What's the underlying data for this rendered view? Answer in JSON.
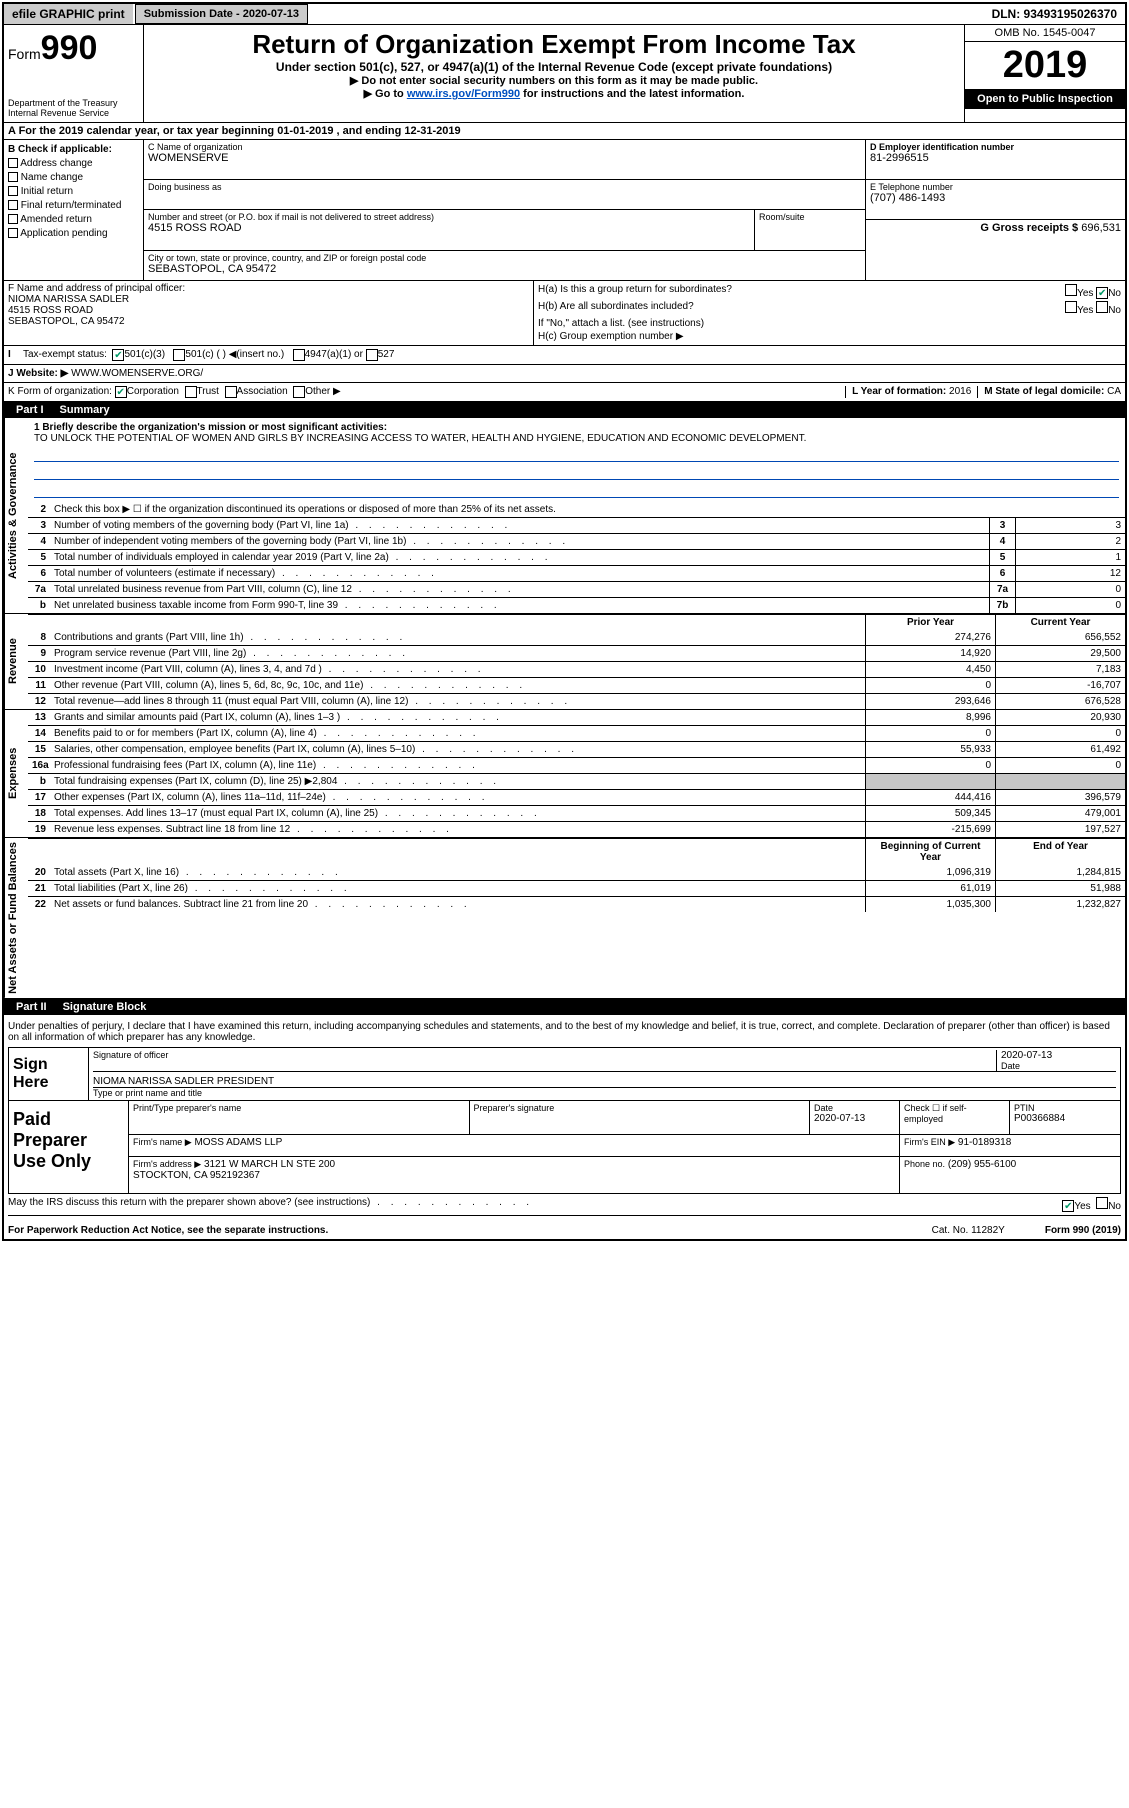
{
  "topbar": {
    "efile": "efile GRAPHIC print",
    "subdate_label": "Submission Date - 2020-07-13",
    "dln": "DLN: 93493195026370"
  },
  "header": {
    "form_label": "Form",
    "form_number": "990",
    "dept": "Department of the Treasury",
    "irs": "Internal Revenue Service",
    "title": "Return of Organization Exempt From Income Tax",
    "subtitle": "Under section 501(c), 527, or 4947(a)(1) of the Internal Revenue Code (except private foundations)",
    "no_ssn": "Do not enter social security numbers on this form as it may be made public.",
    "goto_pre": "Go to ",
    "goto_link": "www.irs.gov/Form990",
    "goto_post": " for instructions and the latest information.",
    "omb": "OMB No. 1545-0047",
    "year": "2019",
    "open": "Open to Public Inspection"
  },
  "rowA": {
    "text": "A For the 2019 calendar year, or tax year beginning 01-01-2019   , and ending 12-31-2019"
  },
  "b_checks": {
    "heading": "B Check if applicable:",
    "opts": [
      "Address change",
      "Name change",
      "Initial return",
      "Final return/terminated",
      "Amended return",
      "Application pending"
    ]
  },
  "c": {
    "label": "C Name of organization",
    "name": "WOMENSERVE",
    "dba_label": "Doing business as",
    "street_label": "Number and street (or P.O. box if mail is not delivered to street address)",
    "street": "4515 ROSS ROAD",
    "room_label": "Room/suite",
    "city_label": "City or town, state or province, country, and ZIP or foreign postal code",
    "city": "SEBASTOPOL, CA  95472"
  },
  "d": {
    "label": "D Employer identification number",
    "val": "81-2996515"
  },
  "e": {
    "label": "E Telephone number",
    "val": "(707) 486-1493"
  },
  "g": {
    "label": "G Gross receipts $",
    "val": "696,531"
  },
  "f": {
    "label": "F  Name and address of principal officer:",
    "name": "NIOMA NARISSA SADLER",
    "addr1": "4515 ROSS ROAD",
    "addr2": "SEBASTOPOL, CA  95472"
  },
  "h": {
    "a": "H(a)  Is this a group return for subordinates?",
    "a_yes": "Yes",
    "a_no": "No",
    "b": "H(b)  Are all subordinates included?",
    "b_note": "If \"No,\" attach a list. (see instructions)",
    "c": "H(c)  Group exemption number ▶"
  },
  "i": {
    "label": "Tax-exempt status:",
    "o1": "501(c)(3)",
    "o2": "501(c) (  ) ◀(insert no.)",
    "o3": "4947(a)(1) or",
    "o4": "527"
  },
  "j": {
    "label": "J   Website: ▶",
    "val": "WWW.WOMENSERVE.ORG/"
  },
  "k": {
    "label": "K Form of organization:",
    "corp": "Corporation",
    "trust": "Trust",
    "assoc": "Association",
    "other": "Other ▶",
    "l_label": "L Year of formation:",
    "l_val": "2016",
    "m_label": "M State of legal domicile:",
    "m_val": "CA"
  },
  "part1": {
    "num": "Part I",
    "title": "Summary"
  },
  "mission": {
    "q": "1  Briefly describe the organization's mission or most significant activities:",
    "text": "TO UNLOCK THE POTENTIAL OF WOMEN AND GIRLS BY INCREASING ACCESS TO WATER, HEALTH AND HYGIENE, EDUCATION AND ECONOMIC DEVELOPMENT."
  },
  "ag_rows": [
    {
      "n": "2",
      "t": "Check this box ▶ ☐  if the organization discontinued its operations or disposed of more than 25% of its net assets."
    },
    {
      "n": "3",
      "t": "Number of voting members of the governing body (Part VI, line 1a)",
      "box": "3",
      "v": "3"
    },
    {
      "n": "4",
      "t": "Number of independent voting members of the governing body (Part VI, line 1b)",
      "box": "4",
      "v": "2"
    },
    {
      "n": "5",
      "t": "Total number of individuals employed in calendar year 2019 (Part V, line 2a)",
      "box": "5",
      "v": "1"
    },
    {
      "n": "6",
      "t": "Total number of volunteers (estimate if necessary)",
      "box": "6",
      "v": "12"
    },
    {
      "n": "7a",
      "t": "Total unrelated business revenue from Part VIII, column (C), line 12",
      "box": "7a",
      "v": "0"
    },
    {
      "n": "b",
      "t": "Net unrelated business taxable income from Form 990-T, line 39",
      "box": "7b",
      "v": "0"
    }
  ],
  "colhdr": {
    "prior": "Prior Year",
    "cur": "Current Year"
  },
  "rev_rows": [
    {
      "n": "8",
      "t": "Contributions and grants (Part VIII, line 1h)",
      "p": "274,276",
      "c": "656,552"
    },
    {
      "n": "9",
      "t": "Program service revenue (Part VIII, line 2g)",
      "p": "14,920",
      "c": "29,500"
    },
    {
      "n": "10",
      "t": "Investment income (Part VIII, column (A), lines 3, 4, and 7d )",
      "p": "4,450",
      "c": "7,183"
    },
    {
      "n": "11",
      "t": "Other revenue (Part VIII, column (A), lines 5, 6d, 8c, 9c, 10c, and 11e)",
      "p": "0",
      "c": "-16,707"
    },
    {
      "n": "12",
      "t": "Total revenue—add lines 8 through 11 (must equal Part VIII, column (A), line 12)",
      "p": "293,646",
      "c": "676,528"
    }
  ],
  "exp_rows": [
    {
      "n": "13",
      "t": "Grants and similar amounts paid (Part IX, column (A), lines 1–3 )",
      "p": "8,996",
      "c": "20,930"
    },
    {
      "n": "14",
      "t": "Benefits paid to or for members (Part IX, column (A), line 4)",
      "p": "0",
      "c": "0"
    },
    {
      "n": "15",
      "t": "Salaries, other compensation, employee benefits (Part IX, column (A), lines 5–10)",
      "p": "55,933",
      "c": "61,492"
    },
    {
      "n": "16a",
      "t": "Professional fundraising fees (Part IX, column (A), line 11e)",
      "p": "0",
      "c": "0"
    },
    {
      "n": "b",
      "t": "Total fundraising expenses (Part IX, column (D), line 25) ▶2,804",
      "shadep": true,
      "shadec": true
    },
    {
      "n": "17",
      "t": "Other expenses (Part IX, column (A), lines 11a–11d, 11f–24e)",
      "p": "444,416",
      "c": "396,579"
    },
    {
      "n": "18",
      "t": "Total expenses. Add lines 13–17 (must equal Part IX, column (A), line 25)",
      "p": "509,345",
      "c": "479,001"
    },
    {
      "n": "19",
      "t": "Revenue less expenses. Subtract line 18 from line 12",
      "p": "-215,699",
      "c": "197,527"
    }
  ],
  "na_hdr": {
    "prior": "Beginning of Current Year",
    "cur": "End of Year"
  },
  "na_rows": [
    {
      "n": "20",
      "t": "Total assets (Part X, line 16)",
      "p": "1,096,319",
      "c": "1,284,815"
    },
    {
      "n": "21",
      "t": "Total liabilities (Part X, line 26)",
      "p": "61,019",
      "c": "51,988"
    },
    {
      "n": "22",
      "t": "Net assets or fund balances. Subtract line 21 from line 20",
      "p": "1,035,300",
      "c": "1,232,827"
    }
  ],
  "part2": {
    "num": "Part II",
    "title": "Signature Block"
  },
  "sig": {
    "decl": "Under penalties of perjury, I declare that I have examined this return, including accompanying schedules and statements, and to the best of my knowledge and belief, it is true, correct, and complete. Declaration of preparer (other than officer) is based on all information of which preparer has any knowledge.",
    "sign_here": "Sign Here",
    "sig_of_officer": "Signature of officer",
    "date_lab": "Date",
    "date_val": "2020-07-13",
    "name_title": "NIOMA NARISSA SADLER  PRESIDENT",
    "type_name": "Type or print name and title",
    "paid": "Paid Preparer Use Only",
    "prep_name_lab": "Print/Type preparer's name",
    "prep_sig_lab": "Preparer's signature",
    "prep_date": "2020-07-13",
    "check_self": "Check ☐ if self-employed",
    "ptin_lab": "PTIN",
    "ptin": "P00366884",
    "firm_lab": "Firm's name  ▶",
    "firm": "MOSS ADAMS LLP",
    "firm_ein_lab": "Firm's EIN ▶",
    "firm_ein": "91-0189318",
    "firm_addr_lab": "Firm's address ▶",
    "firm_addr1": "3121 W MARCH LN STE 200",
    "firm_addr2": "STOCKTON, CA  952192367",
    "phone_lab": "Phone no.",
    "phone": "(209) 955-6100",
    "discuss": "May the IRS discuss this return with the preparer shown above? (see instructions)",
    "yes": "Yes",
    "no": "No"
  },
  "footer": {
    "pra": "For Paperwork Reduction Act Notice, see the separate instructions.",
    "cat": "Cat. No. 11282Y",
    "form": "Form 990 (2019)"
  },
  "siderails": {
    "ag": "Activities & Governance",
    "rev": "Revenue",
    "exp": "Expenses",
    "na": "Net Assets or Fund Balances"
  }
}
